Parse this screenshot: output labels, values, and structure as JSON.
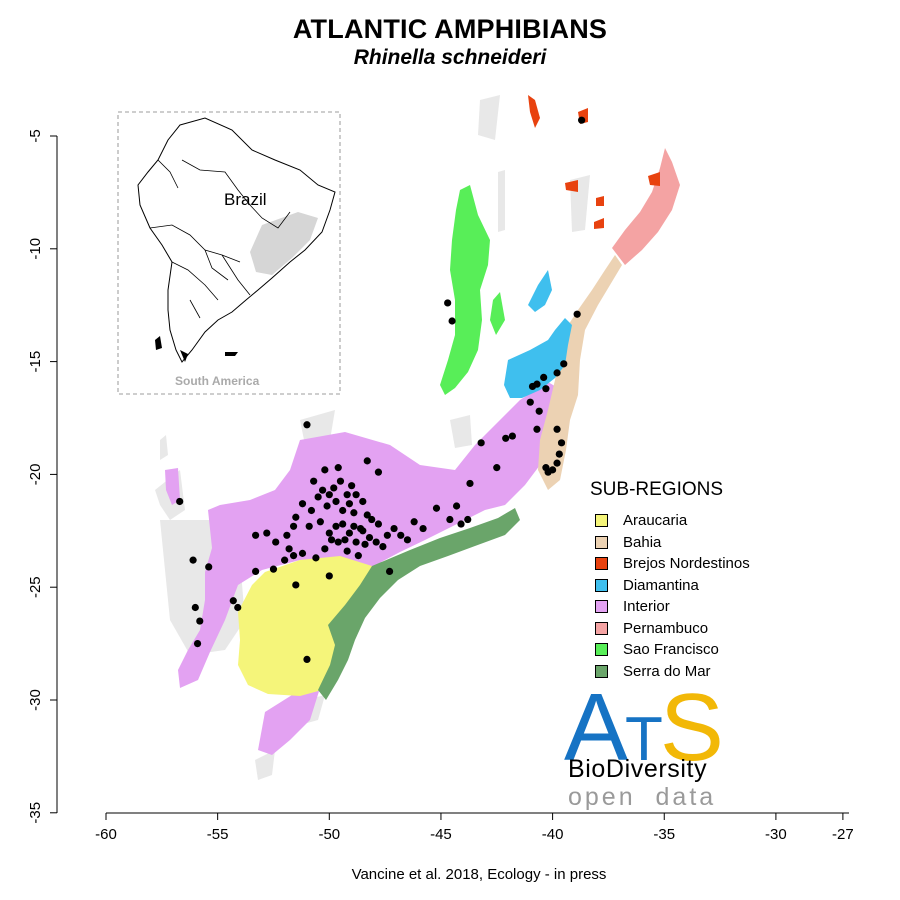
{
  "title": "ATLANTIC AMPHIBIANS",
  "species": "Rhinella schneideri",
  "caption": "Vancine et al. 2018, Ecology - in press",
  "axes": {
    "x_ticks": [
      "-60",
      "-55",
      "-50",
      "-45",
      "-40",
      "-35",
      "-30",
      "-27"
    ],
    "y_ticks": [
      "-5",
      "-10",
      "-15",
      "-20",
      "-25",
      "-30",
      "-35"
    ],
    "x_range": [
      -60,
      -27
    ],
    "y_range": [
      -35,
      -4
    ]
  },
  "inset": {
    "country_label": "Brazil",
    "continent_label": "South America"
  },
  "legend": {
    "title": "SUB-REGIONS",
    "items": [
      {
        "label": "Araucaria",
        "color": "#f5f57a"
      },
      {
        "label": "Bahia",
        "color": "#ecd2b3"
      },
      {
        "label": "Brejos Nordestinos",
        "color": "#e8420f"
      },
      {
        "label": "Diamantina",
        "color": "#3fbfee"
      },
      {
        "label": "Interior",
        "color": "#e3a2f2"
      },
      {
        "label": "Pernambuco",
        "color": "#f4a3a3"
      },
      {
        "label": "Sao Francisco",
        "color": "#58ee58"
      },
      {
        "label": "Serra do Mar",
        "color": "#6aa56a"
      }
    ]
  },
  "logo": {
    "a": "A",
    "t": "T",
    "s": "S",
    "line1": "BioDiversity",
    "line2": "open  data"
  },
  "occurrences": [
    [
      -38.7,
      -4.3
    ],
    [
      -44.7,
      -12.4
    ],
    [
      -44.5,
      -13.2
    ],
    [
      -38.9,
      -12.9
    ],
    [
      -39.5,
      -15.1
    ],
    [
      -39.8,
      -15.5
    ],
    [
      -40.4,
      -15.7
    ],
    [
      -40.7,
      -16.0
    ],
    [
      -40.9,
      -16.1
    ],
    [
      -40.3,
      -16.2
    ],
    [
      -41.0,
      -16.8
    ],
    [
      -40.6,
      -17.2
    ],
    [
      -40.7,
      -18.0
    ],
    [
      -41.8,
      -18.3
    ],
    [
      -42.1,
      -18.4
    ],
    [
      -39.8,
      -18.0
    ],
    [
      -39.6,
      -18.6
    ],
    [
      -39.7,
      -19.1
    ],
    [
      -39.8,
      -19.5
    ],
    [
      -40.0,
      -19.8
    ],
    [
      -40.2,
      -19.9
    ],
    [
      -40.3,
      -19.7
    ],
    [
      -43.2,
      -18.6
    ],
    [
      -42.5,
      -19.7
    ],
    [
      -43.7,
      -20.4
    ],
    [
      -44.3,
      -21.4
    ],
    [
      -45.2,
      -21.5
    ],
    [
      -44.6,
      -22.0
    ],
    [
      -44.1,
      -22.2
    ],
    [
      -43.8,
      -22.0
    ],
    [
      -45.8,
      -22.4
    ],
    [
      -46.2,
      -22.1
    ],
    [
      -46.5,
      -22.9
    ],
    [
      -46.8,
      -22.7
    ],
    [
      -47.1,
      -22.4
    ],
    [
      -47.4,
      -22.7
    ],
    [
      -47.8,
      -22.2
    ],
    [
      -48.1,
      -22.0
    ],
    [
      -48.3,
      -21.8
    ],
    [
      -48.5,
      -21.2
    ],
    [
      -48.8,
      -20.9
    ],
    [
      -49.0,
      -20.5
    ],
    [
      -49.2,
      -20.9
    ],
    [
      -49.5,
      -20.3
    ],
    [
      -49.8,
      -20.6
    ],
    [
      -50.0,
      -20.9
    ],
    [
      -50.3,
      -20.7
    ],
    [
      -50.5,
      -21.0
    ],
    [
      -50.1,
      -21.4
    ],
    [
      -49.7,
      -21.2
    ],
    [
      -49.4,
      -21.6
    ],
    [
      -49.1,
      -21.3
    ],
    [
      -48.9,
      -21.7
    ],
    [
      -48.6,
      -22.4
    ],
    [
      -48.2,
      -22.8
    ],
    [
      -48.4,
      -23.1
    ],
    [
      -48.8,
      -23.0
    ],
    [
      -49.1,
      -22.6
    ],
    [
      -49.4,
      -22.2
    ],
    [
      -49.7,
      -22.3
    ],
    [
      -50.0,
      -22.6
    ],
    [
      -50.4,
      -22.1
    ],
    [
      -50.8,
      -21.6
    ],
    [
      -51.2,
      -21.3
    ],
    [
      -51.5,
      -21.9
    ],
    [
      -50.7,
      -20.3
    ],
    [
      -50.2,
      -19.8
    ],
    [
      -49.6,
      -19.7
    ],
    [
      -48.3,
      -19.4
    ],
    [
      -47.8,
      -19.9
    ],
    [
      -51.0,
      -17.8
    ],
    [
      -51.6,
      -22.3
    ],
    [
      -51.9,
      -22.7
    ],
    [
      -52.4,
      -23.0
    ],
    [
      -52.8,
      -22.6
    ],
    [
      -53.3,
      -22.7
    ],
    [
      -51.8,
      -23.3
    ],
    [
      -51.2,
      -23.5
    ],
    [
      -50.6,
      -23.7
    ],
    [
      -50.2,
      -23.3
    ],
    [
      -49.6,
      -23.0
    ],
    [
      -49.2,
      -23.4
    ],
    [
      -48.7,
      -23.6
    ],
    [
      -48.9,
      -22.3
    ],
    [
      -49.3,
      -22.9
    ],
    [
      -47.9,
      -23.0
    ],
    [
      -47.6,
      -23.2
    ],
    [
      -47.3,
      -24.3
    ],
    [
      -50.0,
      -24.5
    ],
    [
      -51.5,
      -24.9
    ],
    [
      -52.5,
      -24.2
    ],
    [
      -52.0,
      -23.8
    ],
    [
      -51.6,
      -23.6
    ],
    [
      -53.3,
      -24.3
    ],
    [
      -51.0,
      -28.2
    ],
    [
      -54.3,
      -25.6
    ],
    [
      -54.1,
      -25.9
    ],
    [
      -55.8,
      -26.5
    ],
    [
      -56.0,
      -25.9
    ],
    [
      -56.1,
      -23.8
    ],
    [
      -55.4,
      -24.1
    ],
    [
      -55.9,
      -27.5
    ],
    [
      -56.7,
      -21.2
    ],
    [
      -50.9,
      -22.3
    ],
    [
      -48.5,
      -22.5
    ],
    [
      -49.9,
      -22.9
    ]
  ]
}
